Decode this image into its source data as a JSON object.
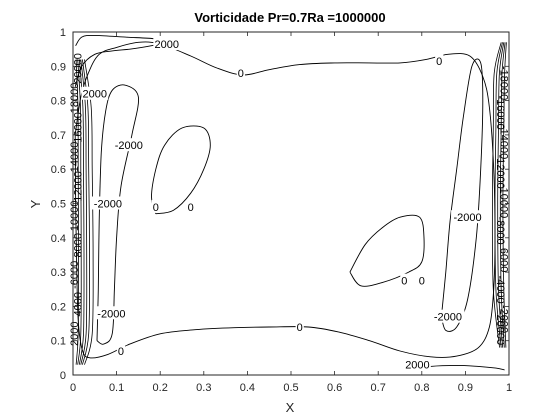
{
  "chart_data": {
    "type": "contour",
    "title": "Vorticidade Pr=0.7Ra =1000000",
    "xlabel": "X",
    "ylabel": "Y",
    "xlim": [
      0,
      1
    ],
    "ylim": [
      0,
      1
    ],
    "xticks": [
      "0",
      "0.1",
      "0.2",
      "0.3",
      "0.4",
      "0.5",
      "0.6",
      "0.7",
      "0.8",
      "0.9",
      "1"
    ],
    "yticks": [
      "0",
      "0.1",
      "0.2",
      "0.3",
      "0.4",
      "0.5",
      "0.6",
      "0.7",
      "0.8",
      "0.9",
      "1"
    ],
    "grid": false,
    "line_color": "#000000",
    "contours": [
      {
        "level": 0,
        "label": "0",
        "points": [
          [
            0.005,
            0.7
          ],
          [
            0.018,
            0.81
          ],
          [
            0.035,
            0.88
          ],
          [
            0.06,
            0.935
          ],
          [
            0.1,
            0.955
          ],
          [
            0.15,
            0.97
          ],
          [
            0.2,
            0.965
          ],
          [
            0.27,
            0.93
          ],
          [
            0.33,
            0.895
          ],
          [
            0.39,
            0.875
          ],
          [
            0.45,
            0.89
          ],
          [
            0.52,
            0.905
          ],
          [
            0.6,
            0.91
          ],
          [
            0.68,
            0.91
          ],
          [
            0.75,
            0.91
          ],
          [
            0.81,
            0.92
          ],
          [
            0.86,
            0.935
          ],
          [
            0.91,
            0.93
          ],
          [
            0.94,
            0.87
          ],
          [
            0.955,
            0.78
          ],
          [
            0.965,
            0.6
          ],
          [
            0.968,
            0.4
          ],
          [
            0.965,
            0.25
          ],
          [
            0.955,
            0.14
          ],
          [
            0.93,
            0.08
          ],
          [
            0.88,
            0.055
          ],
          [
            0.82,
            0.053
          ],
          [
            0.75,
            0.07
          ],
          [
            0.68,
            0.1
          ],
          [
            0.61,
            0.125
          ],
          [
            0.54,
            0.14
          ],
          [
            0.45,
            0.14
          ],
          [
            0.37,
            0.138
          ],
          [
            0.28,
            0.132
          ],
          [
            0.2,
            0.12
          ],
          [
            0.13,
            0.09
          ],
          [
            0.08,
            0.06
          ],
          [
            0.04,
            0.05
          ],
          [
            0.022,
            0.07
          ],
          [
            0.012,
            0.16
          ],
          [
            0.008,
            0.35
          ],
          [
            0.006,
            0.52
          ],
          [
            0.005,
            0.7
          ]
        ],
        "labels_at": [
          [
            0.385,
            0.88
          ],
          [
            0.84,
            0.915
          ],
          [
            0.52,
            0.14
          ],
          [
            0.11,
            0.07
          ]
        ]
      },
      {
        "level": 0,
        "label": "0",
        "points": [
          [
            0.19,
            0.47
          ],
          [
            0.18,
            0.52
          ],
          [
            0.19,
            0.6
          ],
          [
            0.21,
            0.67
          ],
          [
            0.25,
            0.72
          ],
          [
            0.3,
            0.72
          ],
          [
            0.315,
            0.67
          ],
          [
            0.3,
            0.6
          ],
          [
            0.27,
            0.53
          ],
          [
            0.23,
            0.48
          ],
          [
            0.19,
            0.47
          ]
        ],
        "labels_at": [
          [
            0.19,
            0.49
          ],
          [
            0.27,
            0.49
          ]
        ]
      },
      {
        "level": 0,
        "label": "0",
        "points": [
          [
            0.635,
            0.3
          ],
          [
            0.67,
            0.38
          ],
          [
            0.71,
            0.43
          ],
          [
            0.75,
            0.46
          ],
          [
            0.795,
            0.46
          ],
          [
            0.805,
            0.4
          ],
          [
            0.8,
            0.33
          ],
          [
            0.77,
            0.3
          ],
          [
            0.71,
            0.27
          ],
          [
            0.66,
            0.26
          ],
          [
            0.635,
            0.3
          ]
        ],
        "labels_at": [
          [
            0.76,
            0.275
          ],
          [
            0.8,
            0.275
          ]
        ]
      },
      {
        "level": -2000,
        "label": "-2000",
        "points": [
          [
            0.055,
            0.1
          ],
          [
            0.058,
            0.25
          ],
          [
            0.06,
            0.45
          ],
          [
            0.065,
            0.65
          ],
          [
            0.075,
            0.77
          ],
          [
            0.09,
            0.83
          ],
          [
            0.12,
            0.845
          ],
          [
            0.15,
            0.81
          ],
          [
            0.135,
            0.7
          ],
          [
            0.11,
            0.55
          ],
          [
            0.1,
            0.4
          ],
          [
            0.095,
            0.25
          ],
          [
            0.09,
            0.12
          ],
          [
            0.07,
            0.09
          ],
          [
            0.055,
            0.1
          ]
        ],
        "labels_at": [
          [
            0.128,
            0.67
          ],
          [
            0.08,
            0.5
          ],
          [
            0.088,
            0.18
          ]
        ]
      },
      {
        "level": -2000,
        "label": "-2000",
        "points": [
          [
            0.845,
            0.17
          ],
          [
            0.855,
            0.3
          ],
          [
            0.865,
            0.45
          ],
          [
            0.88,
            0.6
          ],
          [
            0.895,
            0.75
          ],
          [
            0.915,
            0.9
          ],
          [
            0.935,
            0.91
          ],
          [
            0.94,
            0.8
          ],
          [
            0.935,
            0.6
          ],
          [
            0.925,
            0.4
          ],
          [
            0.905,
            0.22
          ],
          [
            0.88,
            0.14
          ],
          [
            0.855,
            0.13
          ],
          [
            0.845,
            0.17
          ]
        ],
        "labels_at": [
          [
            0.86,
            0.17
          ],
          [
            0.905,
            0.46
          ]
        ]
      },
      {
        "level": 2000,
        "label": "2000",
        "points": [
          [
            0.005,
            0.84
          ],
          [
            0.02,
            0.9
          ],
          [
            0.05,
            0.935
          ],
          [
            0.09,
            0.945
          ],
          [
            0.13,
            0.95
          ],
          [
            0.18,
            0.96
          ],
          [
            0.215,
            0.97
          ],
          [
            0.19,
            0.98
          ],
          [
            0.12,
            0.985
          ],
          [
            0.05,
            0.99
          ],
          [
            0.02,
            0.985
          ],
          [
            0.006,
            0.96
          ]
        ],
        "labels_at": [
          [
            0.215,
            0.965
          ],
          [
            0.05,
            0.82
          ]
        ]
      },
      {
        "level": 2000,
        "label": "2000",
        "points": [
          [
            0.78,
            0.015
          ],
          [
            0.82,
            0.025
          ],
          [
            0.88,
            0.028
          ],
          [
            0.93,
            0.025
          ],
          [
            0.97,
            0.02
          ],
          [
            0.99,
            0.015
          ]
        ],
        "labels_at": [
          [
            0.79,
            0.03
          ]
        ]
      }
    ],
    "wall_labels": [
      "2000",
      "-2000",
      "4000",
      "-4000",
      "-6000",
      "6000",
      "8000",
      "-8000",
      "10000",
      "-10000",
      "12000",
      "-12000",
      "14000",
      "-14000",
      "16000",
      "-16000",
      "18000",
      "-18000",
      "20000",
      "-20000"
    ]
  }
}
